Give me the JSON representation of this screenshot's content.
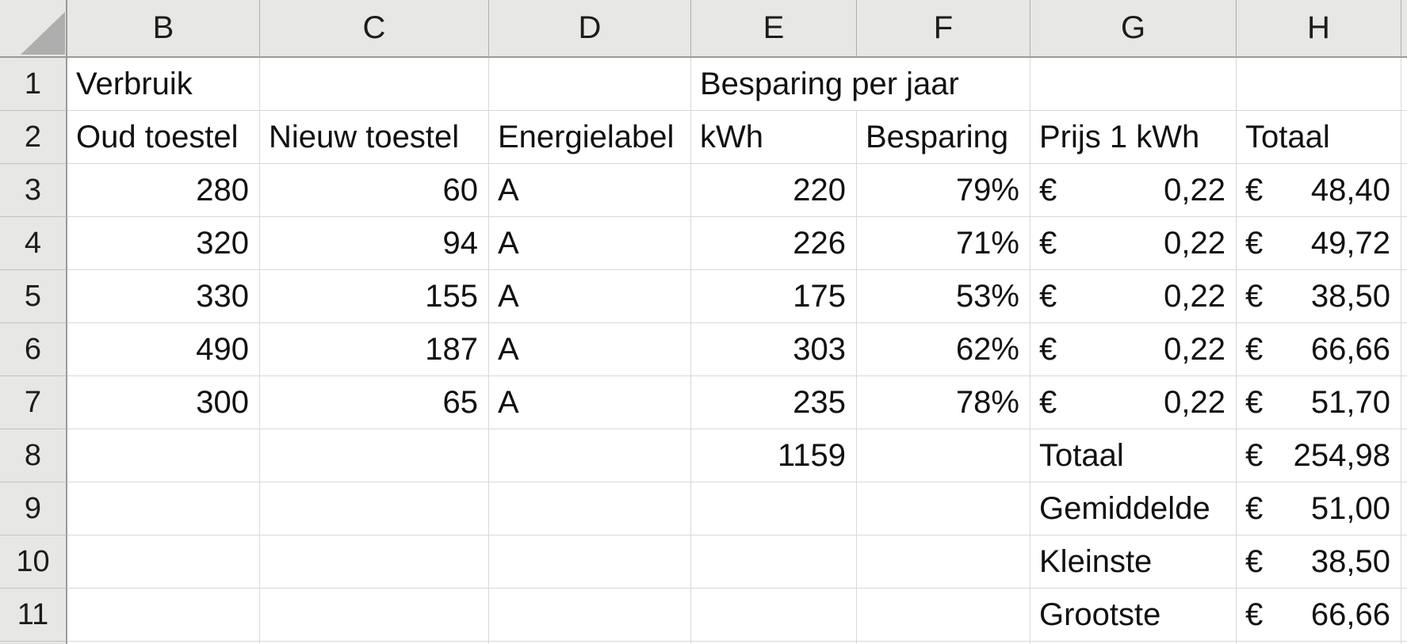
{
  "sheet": {
    "column_headers": [
      "B",
      "C",
      "D",
      "E",
      "F",
      "G",
      "H"
    ],
    "row_headers": [
      "1",
      "2",
      "3",
      "4",
      "5",
      "6",
      "7",
      "8",
      "9",
      "10",
      "11"
    ],
    "rows": [
      [
        {
          "v": "Verbruik"
        },
        null,
        null,
        {
          "v": "Besparing per jaar",
          "span": 2
        },
        {
          "skip": true
        },
        null,
        null
      ],
      [
        {
          "v": "Oud toestel"
        },
        {
          "v": "Nieuw toestel"
        },
        {
          "v": "Energielabel"
        },
        {
          "v": "kWh"
        },
        {
          "v": "Besparing"
        },
        {
          "v": "Prijs 1 kWh"
        },
        {
          "v": "Totaal"
        }
      ],
      [
        {
          "v": "280",
          "a": "r"
        },
        {
          "v": "60",
          "a": "r"
        },
        {
          "v": "A"
        },
        {
          "v": "220",
          "a": "r"
        },
        {
          "v": "79%",
          "a": "r"
        },
        {
          "cur": "€",
          "v": "0,22"
        },
        {
          "cur": "€",
          "v": "48,40"
        }
      ],
      [
        {
          "v": "320",
          "a": "r"
        },
        {
          "v": "94",
          "a": "r"
        },
        {
          "v": "A"
        },
        {
          "v": "226",
          "a": "r"
        },
        {
          "v": "71%",
          "a": "r"
        },
        {
          "cur": "€",
          "v": "0,22"
        },
        {
          "cur": "€",
          "v": "49,72"
        }
      ],
      [
        {
          "v": "330",
          "a": "r"
        },
        {
          "v": "155",
          "a": "r"
        },
        {
          "v": "A"
        },
        {
          "v": "175",
          "a": "r"
        },
        {
          "v": "53%",
          "a": "r"
        },
        {
          "cur": "€",
          "v": "0,22"
        },
        {
          "cur": "€",
          "v": "38,50"
        }
      ],
      [
        {
          "v": "490",
          "a": "r"
        },
        {
          "v": "187",
          "a": "r"
        },
        {
          "v": "A"
        },
        {
          "v": "303",
          "a": "r"
        },
        {
          "v": "62%",
          "a": "r"
        },
        {
          "cur": "€",
          "v": "0,22"
        },
        {
          "cur": "€",
          "v": "66,66"
        }
      ],
      [
        {
          "v": "300",
          "a": "r"
        },
        {
          "v": "65",
          "a": "r"
        },
        {
          "v": "A"
        },
        {
          "v": "235",
          "a": "r"
        },
        {
          "v": "78%",
          "a": "r"
        },
        {
          "cur": "€",
          "v": "0,22"
        },
        {
          "cur": "€",
          "v": "51,70"
        }
      ],
      [
        null,
        null,
        null,
        {
          "v": "1159",
          "a": "r"
        },
        null,
        {
          "v": "Totaal"
        },
        {
          "cur": "€",
          "v": "254,98"
        }
      ],
      [
        null,
        null,
        null,
        null,
        null,
        {
          "v": "Gemiddelde"
        },
        {
          "cur": "€",
          "v": "51,00"
        }
      ],
      [
        null,
        null,
        null,
        null,
        null,
        {
          "v": "Kleinste"
        },
        {
          "cur": "€",
          "v": "38,50"
        }
      ],
      [
        null,
        null,
        null,
        null,
        null,
        {
          "v": "Grootste"
        },
        {
          "cur": "€",
          "v": "66,66"
        }
      ]
    ]
  },
  "theme": {
    "header_bg": "#E7E7E5",
    "header_text": "#1c1c1c",
    "cell_bg": "#FFFFFF",
    "cell_text": "#111111",
    "grid_line": "#D8D8D8",
    "col_sep": "#ADADAD",
    "row_sep": "#C2C2C2",
    "header_border": "#9A9A9A",
    "triangle": "#AEAEAE"
  }
}
